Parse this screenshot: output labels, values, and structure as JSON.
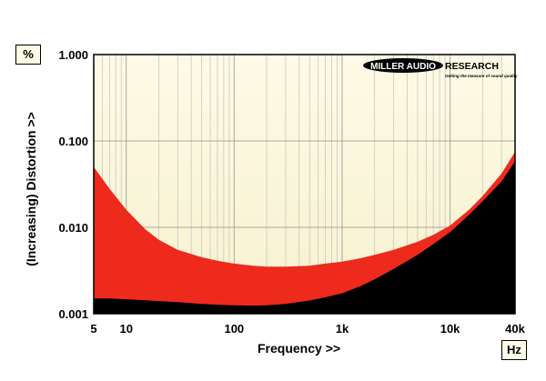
{
  "chart_data": {
    "type": "area",
    "title": "",
    "xlabel": "Frequency >>",
    "ylabel": "(Increasing) Distortion >>",
    "x_unit": "Hz",
    "y_unit": "%",
    "x_scale": "log",
    "y_scale": "log",
    "xlim": [
      5,
      40000
    ],
    "ylim": [
      0.001,
      1.0
    ],
    "grid": true,
    "x_ticks": [
      {
        "value": 5,
        "label": "5"
      },
      {
        "value": 10,
        "label": "10"
      },
      {
        "value": 100,
        "label": "100"
      },
      {
        "value": 1000,
        "label": "1k"
      },
      {
        "value": 10000,
        "label": "10k"
      },
      {
        "value": 40000,
        "label": "40k"
      }
    ],
    "y_ticks": [
      {
        "value": 0.001,
        "label": "0.001"
      },
      {
        "value": 0.01,
        "label": "0.010"
      },
      {
        "value": 0.1,
        "label": "0.100"
      },
      {
        "value": 1.0,
        "label": "1.000"
      }
    ],
    "series": [
      {
        "color": "#ee2a1c",
        "x": [
          5,
          7,
          10,
          15,
          20,
          30,
          50,
          70,
          100,
          150,
          200,
          300,
          500,
          700,
          1000,
          1500,
          2000,
          3000,
          5000,
          7000,
          10000,
          15000,
          20000,
          30000,
          40000
        ],
        "y": [
          0.05,
          0.028,
          0.016,
          0.0095,
          0.0072,
          0.0055,
          0.0045,
          0.0041,
          0.0038,
          0.0036,
          0.0035,
          0.0035,
          0.0036,
          0.0038,
          0.004,
          0.0044,
          0.0048,
          0.0055,
          0.0068,
          0.0082,
          0.0105,
          0.016,
          0.023,
          0.042,
          0.075
        ]
      },
      {
        "color": "#000000",
        "x": [
          5,
          7,
          10,
          15,
          20,
          30,
          50,
          70,
          100,
          150,
          200,
          300,
          500,
          700,
          1000,
          1500,
          2000,
          3000,
          5000,
          7000,
          10000,
          15000,
          20000,
          30000,
          40000
        ],
        "y": [
          0.0015,
          0.0015,
          0.00147,
          0.00143,
          0.0014,
          0.00136,
          0.0013,
          0.00127,
          0.00125,
          0.00124,
          0.00125,
          0.0013,
          0.00142,
          0.00155,
          0.00172,
          0.0021,
          0.0025,
          0.0033,
          0.0048,
          0.0064,
          0.0088,
          0.014,
          0.02,
          0.034,
          0.058
        ]
      }
    ]
  },
  "branding": {
    "logo_main": "MILLER AUDIO",
    "logo_research": "RESEARCH",
    "logo_tagline": "Getting the measure of sound quality"
  },
  "colors": {
    "plot_top": "#fdfbe6",
    "plot_bottom": "#f8f1cf",
    "grid": "#c8c8c0",
    "red_band": "#ee2a1c",
    "black_band": "#000000"
  }
}
